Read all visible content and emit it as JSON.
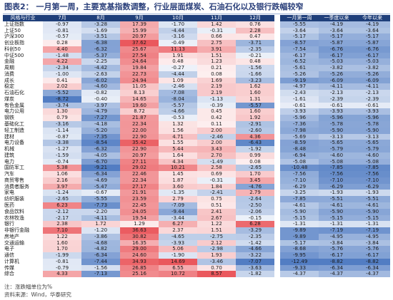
{
  "title": "图表2： 一月第一周，主要宽基指数调整，行业层面煤炭、石油石化以及银行跌幅较窄",
  "table": {
    "headers": [
      "风格与行业",
      "7月",
      "8月",
      "9月",
      "10月",
      "11月",
      "12月",
      "一月第一周",
      "一季度以来",
      "今年以来"
    ],
    "rows": [
      {
        "label": "上证指数",
        "values": [
          -0.97,
          -3.28,
          17.39,
          -1.7,
          1.42,
          0.76,
          -5.55,
          -4.19,
          -4.19
        ]
      },
      {
        "label": "上证50",
        "values": [
          -0.81,
          -1.69,
          15.99,
          -4.44,
          -0.31,
          2.28,
          -3.64,
          -3.64,
          -3.64
        ]
      },
      {
        "label": "沪深300",
        "values": [
          -0.57,
          -3.51,
          20.97,
          -3.16,
          0.66,
          0.47,
          -5.17,
          -5.17,
          -5.17
        ]
      },
      {
        "label": "创业板指",
        "values": [
          0.28,
          -6.38,
          37.62,
          -0.49,
          2.75,
          -3.71,
          -8.57,
          -5.87,
          -5.87
        ]
      },
      {
        "label": "科创50",
        "values": [
          4.4,
          -6.32,
          25.67,
          11.13,
          3.91,
          -2.35,
          -7.54,
          -6.76,
          -6.76
        ]
      },
      {
        "label": "中证500",
        "values": [
          -1.48,
          -5.37,
          27.54,
          1.91,
          1.51,
          -0.21,
          -6.17,
          -6.17,
          -6.17
        ]
      },
      {
        "label": "金融",
        "values": [
          4.22,
          -2.25,
          24.64,
          0.48,
          1.23,
          0.48,
          -6.52,
          -5.03,
          -5.03
        ]
      },
      {
        "label": "周期",
        "values": [
          -2.34,
          -4.42,
          19.84,
          -0.27,
          0.21,
          -1.56,
          -5.61,
          -3.82,
          -3.82
        ]
      },
      {
        "label": "消费",
        "values": [
          -1.0,
          -2.63,
          22.73,
          -4.44,
          0.08,
          -1.66,
          -5.26,
          -5.26,
          -5.26
        ]
      },
      {
        "label": "成长",
        "values": [
          0.41,
          -6.02,
          24.94,
          1.09,
          1.69,
          -3.23,
          -9.19,
          -6.09,
          -6.09
        ]
      },
      {
        "label": "稳定",
        "values": [
          2.02,
          -4.6,
          11.05,
          -2.46,
          2.19,
          1.62,
          -4.97,
          -4.11,
          -4.11
        ]
      },
      {
        "label": "石油石化",
        "values": [
          -5.52,
          -0.82,
          8.13,
          -7.08,
          2.19,
          1.6,
          -2.43,
          -2.13,
          -2.13
        ]
      },
      {
        "label": "煤炭",
        "values": [
          -8.72,
          -0.4,
          14.65,
          -8.04,
          -1.13,
          1.31,
          -1.61,
          -2.39,
          -2.39
        ]
      },
      {
        "label": "有色金属",
        "values": [
          -3.74,
          -3.97,
          19.6,
          -5.57,
          -0.39,
          -5.57,
          -0.61,
          -0.61,
          -0.61
        ]
      },
      {
        "label": "电力公用",
        "values": [
          1.3,
          -4.79,
          8.72,
          -4.66,
          0.45,
          1.6,
          -3.93,
          -3.93,
          -3.93
        ]
      },
      {
        "label": "钢铁",
        "values": [
          0.79,
          -7.27,
          21.87,
          -0.53,
          0.42,
          1.92,
          -5.96,
          -5.96,
          -5.96
        ]
      },
      {
        "label": "基础化工",
        "values": [
          -3.16,
          -4.18,
          22.34,
          1.32,
          0.11,
          -2.91,
          -7.36,
          -5.78,
          -5.78
        ]
      },
      {
        "label": "轻工制造",
        "values": [
          -1.14,
          -5.2,
          22.0,
          1.56,
          2.0,
          -2.6,
          -7.98,
          -5.9,
          -5.9
        ]
      },
      {
        "label": "建材",
        "values": [
          -0.87,
          -7.35,
          22.9,
          4.71,
          -2.46,
          4.36,
          -5.69,
          -3.13,
          -3.13
        ]
      },
      {
        "label": "电力设备",
        "values": [
          -3.38,
          -8.54,
          35.42,
          1.55,
          2.0,
          -6.43,
          -8.59,
          -5.65,
          -5.65
        ]
      },
      {
        "label": "机械",
        "values": [
          -1.27,
          -6.32,
          22.9,
          5.44,
          3.43,
          -1.92,
          -8.48,
          -5.79,
          -5.79
        ]
      },
      {
        "label": "建筑",
        "values": [
          -1.59,
          -4.05,
          20.97,
          1.64,
          2.7,
          0.99,
          -6.94,
          -4.6,
          -4.6
        ]
      },
      {
        "label": "电力",
        "values": [
          -0.74,
          -6.7,
          27.11,
          4.34,
          -1.49,
          0.08,
          -5.08,
          -5.08,
          -5.08
        ]
      },
      {
        "label": "国防军工",
        "values": [
          5.38,
          -9.21,
          29.02,
          10.21,
          2.58,
          -2.65,
          -10.48,
          -7.85,
          -7.85
        ]
      },
      {
        "label": "汽车",
        "values": [
          1.06,
          -6.34,
          22.46,
          1.45,
          0.69,
          1.7,
          -7.56,
          -7.56,
          -7.56
        ]
      },
      {
        "label": "商贸零售",
        "values": [
          2.16,
          -4.69,
          22.34,
          1.87,
          -0.31,
          3.45,
          -7.1,
          -7.1,
          -7.1
        ]
      },
      {
        "label": "消费者服务",
        "values": [
          3.97,
          -5.47,
          27.17,
          3.6,
          1.84,
          -4.76,
          -6.29,
          -6.29,
          -6.29
        ]
      },
      {
        "label": "家电",
        "values": [
          -1.24,
          -0.67,
          21.91,
          -1.35,
          -2.41,
          2.79,
          -3.25,
          -1.93,
          -1.93
        ]
      },
      {
        "label": "纺织服装",
        "values": [
          -2.65,
          -5.55,
          23.59,
          2.79,
          0.75,
          -2.64,
          -7.85,
          -5.51,
          -5.51
        ]
      },
      {
        "label": "医药",
        "values": [
          6.23,
          -7.73,
          22.45,
          -7.09,
          0.51,
          -2.5,
          -4.61,
          -4.61,
          -4.61
        ]
      },
      {
        "label": "食品饮料",
        "values": [
          -2.12,
          -2.2,
          24.05,
          -9.44,
          2.41,
          -2.06,
          -5.9,
          -5.9,
          -5.9
        ]
      },
      {
        "label": "农林牧渔",
        "values": [
          -2.17,
          -4.11,
          19.54,
          -3.44,
          2.67,
          -0.15,
          -5.15,
          -5.15,
          -5.15
        ]
      },
      {
        "label": "银行",
        "values": [
          2.38,
          1.72,
          1.29,
          6.27,
          1.22,
          6.28,
          -1.31,
          -1.31,
          -1.31
        ]
      },
      {
        "label": "非银行金融",
        "values": [
          7.1,
          -1.2,
          36.63,
          2.37,
          1.51,
          -3.29,
          -9.89,
          -7.19,
          -7.19
        ]
      },
      {
        "label": "房地产",
        "values": [
          1.22,
          -3.86,
          30.82,
          -4.65,
          -2.75,
          -2.35,
          -9.89,
          -4.95,
          -4.95
        ]
      },
      {
        "label": "交通运输",
        "values": [
          1.6,
          -4.68,
          16.35,
          -3.93,
          2.12,
          -1.42,
          -5.17,
          -3.84,
          -3.84
        ]
      },
      {
        "label": "电子",
        "values": [
          1.7,
          -4.82,
          29.0,
          5.06,
          -2.98,
          -4.66,
          -8.68,
          -5.76,
          -5.76
        ]
      },
      {
        "label": "通信",
        "values": [
          -1.99,
          -6.34,
          24.6,
          -1.9,
          1.93,
          -3.22,
          -9.95,
          -6.17,
          -6.17
        ]
      },
      {
        "label": "计算机",
        "values": [
          -0.81,
          -7.44,
          34.93,
          14.69,
          -3.46,
          -7.07,
          -12.49,
          -8.82,
          -8.82
        ]
      },
      {
        "label": "传媒",
        "values": [
          -0.79,
          -1.56,
          26.85,
          6.55,
          0.7,
          -3.63,
          -9.33,
          -6.34,
          -6.34
        ]
      },
      {
        "label": "综合",
        "values": [
          4.33,
          -7.13,
          25.16,
          10.72,
          8.57,
          -1.82,
          -4.37,
          -4.37,
          -4.37
        ]
      }
    ]
  },
  "colors": {
    "header_bg": "#1f3f7a",
    "positive": "#e8464b",
    "negative": "#3f6fbd",
    "title": "#2a3f7a"
  },
  "footnotes": {
    "note": "注：涨跌幅单位为%",
    "source": "资料来源：Wind，华泰研究"
  }
}
